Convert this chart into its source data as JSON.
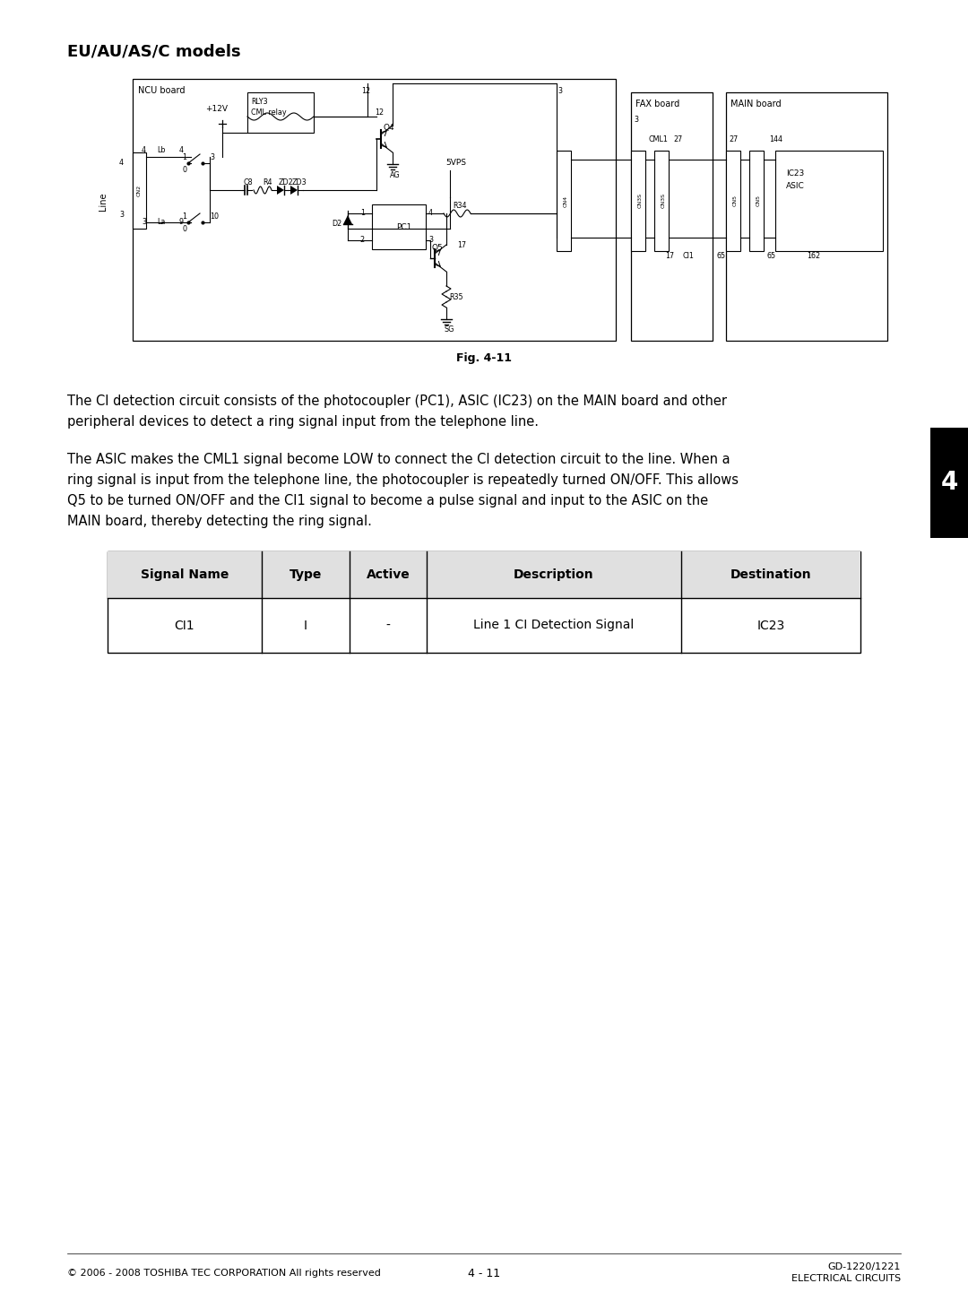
{
  "page_title": "EU/AU/AS/C models",
  "fig_caption": "Fig. 4-11",
  "p1_line1": "The CI detection circuit consists of the photocoupler (PC1), ASIC (IC23) on the MAIN board and other",
  "p1_line2": "peripheral devices to detect a ring signal input from the telephone line.",
  "p2_line1": "The ASIC makes the CML1 signal become LOW to connect the CI detection circuit to the line. When a",
  "p2_line2": "ring signal is input from the telephone line, the photocoupler is repeatedly turned ON/OFF. This allows",
  "p2_line3": "Q5 to be turned ON/OFF and the CI1 signal to become a pulse signal and input to the ASIC on the",
  "p2_line4": "MAIN board, thereby detecting the ring signal.",
  "table_headers": [
    "Signal Name",
    "Type",
    "Active",
    "Description",
    "Destination"
  ],
  "table_row": [
    "CI1",
    "I",
    "-",
    "Line 1 CI Detection Signal",
    "IC23"
  ],
  "footer_left": "© 2006 - 2008 TOSHIBA TEC CORPORATION All rights reserved",
  "footer_right1": "GD-1220/1221",
  "footer_right2": "ELECTRICAL CIRCUITS",
  "page_number": "4 - 11",
  "tab_label": "4",
  "background_color": "#ffffff",
  "text_color": "#000000",
  "tab_color": "#000000"
}
